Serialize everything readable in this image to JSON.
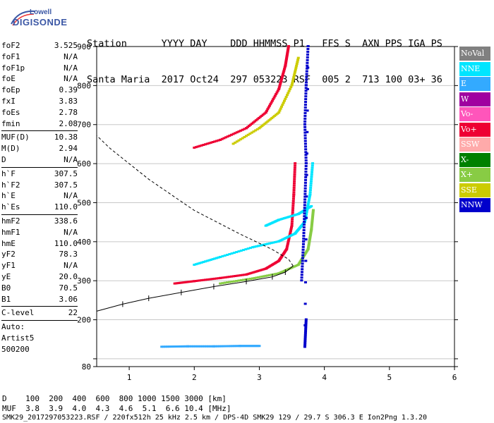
{
  "logo": {
    "line1": "Lowell",
    "line2": "DIGISONDE"
  },
  "header": {
    "row1": "Station      YYYY DAY    DDD HHMMSS P1   FFS S  AXN PPS IGA PS",
    "row2": "Santa Maria  2017 Oct24  297 053223 RSF  005 2  713 100 03+ 36"
  },
  "params": [
    {
      "label": "foF2",
      "value": "3.525"
    },
    {
      "label": "foF1",
      "value": "N/A"
    },
    {
      "label": "foF1p",
      "value": "N/A"
    },
    {
      "label": "foE",
      "value": "N/A"
    },
    {
      "label": "foEp",
      "value": "0.39"
    },
    {
      "label": "fxI",
      "value": "3.83"
    },
    {
      "label": "foEs",
      "value": "2.78"
    },
    {
      "label": "fmin",
      "value": "2.08"
    },
    {
      "sep": true
    },
    {
      "label": "MUF(D)",
      "value": "10.38"
    },
    {
      "label": "M(D)",
      "value": "2.94"
    },
    {
      "label": "D",
      "value": "N/A"
    },
    {
      "sep": true
    },
    {
      "label": "h`F",
      "value": "307.5"
    },
    {
      "label": "h`F2",
      "value": "307.5"
    },
    {
      "label": "h`E",
      "value": "N/A"
    },
    {
      "label": "h`Es",
      "value": "110.0"
    },
    {
      "sep": true
    },
    {
      "label": "hmF2",
      "value": "338.6"
    },
    {
      "label": "hmF1",
      "value": "N/A"
    },
    {
      "label": "hmE",
      "value": "110.0"
    },
    {
      "label": "yF2",
      "value": "78.3"
    },
    {
      "label": "yF1",
      "value": "N/A"
    },
    {
      "label": "yE",
      "value": "20.0"
    },
    {
      "label": "B0",
      "value": "70.5"
    },
    {
      "label": "B1",
      "value": "3.06"
    },
    {
      "sep": true
    },
    {
      "label": "C-level",
      "value": "22"
    },
    {
      "sep": true
    },
    {
      "text": "Auto:"
    },
    {
      "text": "Artist5"
    },
    {
      "text": "500200"
    }
  ],
  "legend": [
    {
      "label": "NoVal",
      "color": "#808080"
    },
    {
      "label": "NNE",
      "color": "#00e5ff"
    },
    {
      "label": "E",
      "color": "#33aaff"
    },
    {
      "label": "W",
      "color": "#a000a0"
    },
    {
      "label": "Vo-",
      "color": "#ff55bb"
    },
    {
      "label": "Vo+",
      "color": "#ee0033"
    },
    {
      "label": "SSW",
      "color": "#ffaaaa"
    },
    {
      "label": "X-",
      "color": "#008000"
    },
    {
      "label": "X+",
      "color": "#88cc44"
    },
    {
      "label": "SSE",
      "color": "#cccc00"
    },
    {
      "label": "NNW",
      "color": "#0000cc"
    }
  ],
  "footer": {
    "d_row": "D    100  200  400  600  800 1000 1500 3000 [km]",
    "muf_row": "MUF  3.8  3.9  4.0  4.3  4.6  5.1  6.6 10.4 [MHz]",
    "info_row": "SMK29_2017297053223.RSF / 220fx512h 25 kHz 2.5 km / DPS-4D SMK29 129 / 29.7 S 306.3 E Ion2Png 1.3.20"
  },
  "chart_data": {
    "type": "scatter",
    "xlim": [
      0.5,
      6.0
    ],
    "ylim": [
      80,
      900
    ],
    "x_ticks": [
      1,
      2,
      3,
      4,
      5,
      6
    ],
    "y_ticks": [
      80,
      100,
      200,
      300,
      400,
      500,
      600,
      700,
      800,
      900
    ],
    "y_tick_labels": [
      "80",
      "",
      "200",
      "300",
      "400",
      "500",
      "600",
      "700",
      "800",
      "900"
    ],
    "grid": "horizontal",
    "legend_position": "right",
    "traces": [
      {
        "name": "Vo+",
        "color": "#ee0033",
        "points": [
          [
            1.7,
            292
          ],
          [
            2.0,
            298
          ],
          [
            2.4,
            306
          ],
          [
            2.8,
            315
          ],
          [
            3.1,
            330
          ],
          [
            3.3,
            350
          ],
          [
            3.42,
            380
          ],
          [
            3.5,
            440
          ],
          [
            3.53,
            520
          ],
          [
            3.55,
            600
          ]
        ]
      },
      {
        "name": "NNE",
        "color": "#00e5ff",
        "points": [
          [
            2.0,
            340
          ],
          [
            2.4,
            360
          ],
          [
            2.9,
            385
          ],
          [
            3.3,
            400
          ],
          [
            3.55,
            420
          ],
          [
            3.7,
            450
          ],
          [
            3.78,
            520
          ],
          [
            3.82,
            600
          ]
        ]
      },
      {
        "name": "X+",
        "color": "#88cc44",
        "points": [
          [
            2.4,
            292
          ],
          [
            2.9,
            305
          ],
          [
            3.3,
            318
          ],
          [
            3.6,
            340
          ],
          [
            3.75,
            380
          ],
          [
            3.8,
            430
          ],
          [
            3.83,
            480
          ]
        ]
      },
      {
        "name": "Vo+ 2F",
        "color": "#ee0033",
        "points": [
          [
            2.0,
            640
          ],
          [
            2.4,
            660
          ],
          [
            2.8,
            690
          ],
          [
            3.1,
            730
          ],
          [
            3.3,
            790
          ],
          [
            3.4,
            850
          ],
          [
            3.45,
            900
          ]
        ]
      },
      {
        "name": "X+ 2F",
        "color": "#cccc00",
        "points": [
          [
            2.6,
            650
          ],
          [
            3.0,
            690
          ],
          [
            3.3,
            730
          ],
          [
            3.5,
            800
          ],
          [
            3.6,
            870
          ]
        ]
      },
      {
        "name": "NNE Es",
        "color": "#00e5ff",
        "points": [
          [
            3.1,
            440
          ],
          [
            3.3,
            455
          ],
          [
            3.6,
            470
          ],
          [
            3.8,
            490
          ]
        ]
      },
      {
        "name": "Es",
        "color": "#33aaff",
        "points": [
          [
            1.5,
            130
          ],
          [
            1.9,
            131
          ],
          [
            2.3,
            131
          ],
          [
            2.7,
            132
          ],
          [
            3.0,
            132
          ]
        ]
      },
      {
        "name": "NNW",
        "color": "#0000cc",
        "points": [
          [
            3.65,
            300
          ],
          [
            3.68,
            400
          ],
          [
            3.7,
            500
          ],
          [
            3.72,
            600
          ],
          [
            3.7,
            700
          ],
          [
            3.72,
            800
          ],
          [
            3.75,
            900
          ],
          [
            3.7,
            130
          ],
          [
            3.72,
            200
          ]
        ]
      }
    ],
    "profile": [
      [
        0.5,
        222
      ],
      [
        0.9,
        240
      ],
      [
        1.3,
        255
      ],
      [
        1.8,
        270
      ],
      [
        2.3,
        285
      ],
      [
        2.8,
        298
      ],
      [
        3.2,
        310
      ],
      [
        3.4,
        322
      ],
      [
        3.52,
        338
      ],
      [
        3.45,
        355
      ],
      [
        3.2,
        380
      ],
      [
        2.7,
        420
      ],
      [
        2.0,
        480
      ],
      [
        1.3,
        560
      ],
      [
        0.7,
        640
      ],
      [
        0.5,
        672
      ]
    ]
  }
}
